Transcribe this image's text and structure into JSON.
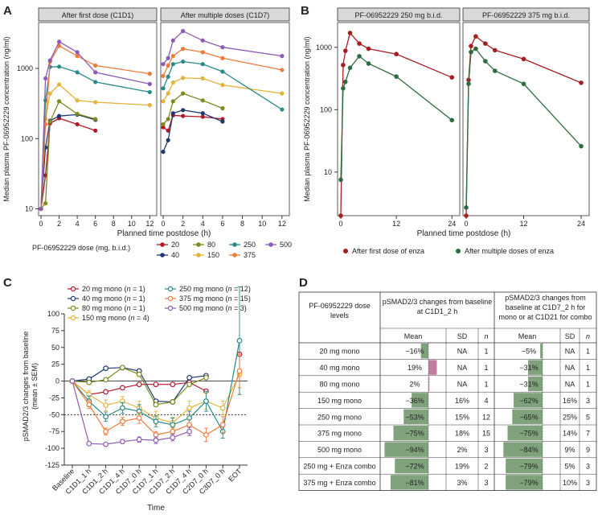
{
  "colors": {
    "20": "#b2182b",
    "40": "#1f3a6e",
    "80": "#7c8a1e",
    "150": "#e3b43c",
    "250": "#2a8a8a",
    "375": "#ef7b3b",
    "500": "#8e5bb4",
    "enza_first": "#a51f22",
    "enza_multi": "#2e6b3e",
    "bar_green": "#7fa27c",
    "bar_pink": "#c37ba4",
    "strip": "#d9d9d9"
  },
  "panel_a": {
    "label": "A",
    "ylabel": "Median plasma PF-06952229 concentration (ng/ml)",
    "xlabel": "Planned time postdose (h)",
    "strips": [
      "After first dose (C1D1)",
      "After multiple doses (C1D7)"
    ],
    "yticks": [
      "10",
      "100",
      "1000"
    ],
    "xticks": [
      "0",
      "2",
      "4",
      "6",
      "8",
      "10",
      "12"
    ],
    "legend_title": "PF-06952229 dose (mg, b.i.d.)",
    "legend": [
      {
        "key": "20",
        "label": "20"
      },
      {
        "key": "80",
        "label": "80"
      },
      {
        "key": "250",
        "label": "250"
      },
      {
        "key": "500",
        "label": "500"
      },
      {
        "key": "40",
        "label": "40"
      },
      {
        "key": "150",
        "label": "150"
      },
      {
        "key": "375",
        "label": "375"
      }
    ]
  },
  "panel_b": {
    "label": "B",
    "ylabel": "Median plasma PF-06952229 concentration (ng/ml)",
    "xlabel": "Planned time postdose (h)",
    "strips": [
      "PF-06952229 250 mg b.i.d.",
      "PF-06952229 375 mg b.i.d."
    ],
    "yticks": [
      "10",
      "100",
      "1000"
    ],
    "xticks": [
      "0",
      "12",
      "24"
    ],
    "legend": [
      {
        "key": "enza_first",
        "label": "After first dose of enza"
      },
      {
        "key": "enza_multi",
        "label": "After multiple doses of enza"
      }
    ]
  },
  "panel_c": {
    "label": "C",
    "ylabel": "pSMAD2/3 changes from baseline (mean ± SEM)",
    "ylabel_line1": "pSMAD2/3 changes from baseline",
    "ylabel_line2": "(mean ± SEM)",
    "xlabel": "Time",
    "yticks": [
      "100",
      "75",
      "50",
      "25",
      "0",
      "-25",
      "-50",
      "-75",
      "-100",
      "-125"
    ],
    "legend": [
      {
        "key": "20",
        "dose": "20 mg mono",
        "n": "1"
      },
      {
        "key": "250",
        "dose": "250 mg mono",
        "n": "12"
      },
      {
        "key": "40",
        "dose": "40 mg mono",
        "n": "1"
      },
      {
        "key": "375",
        "dose": "375 mg mono",
        "n": "15"
      },
      {
        "key": "80",
        "dose": "80 mg mono",
        "n": "1"
      },
      {
        "key": "500",
        "dose": "500 mg mono",
        "n": "3"
      },
      {
        "key": "150",
        "dose": "150 mg mono",
        "n": "4"
      }
    ]
  },
  "panel_d": {
    "label": "D",
    "header_col1": "PF-06952229 dose levels",
    "header_grp1": "pSMAD2/3 changes from baseline at C1D1_2 h",
    "header_grp2": "pSMAD2/3 changes from baseline at C1D7_2 h for mono or at C1D21 for combo",
    "sub_mean": "Mean",
    "sub_sd": "SD",
    "sub_n": "n",
    "rows": [
      {
        "dose": "20 mg mono",
        "m1": "−16%",
        "v1": -16,
        "sd1": "NA",
        "n1": "1",
        "m2": "−5%",
        "v2": -5,
        "sd2": "NA",
        "n2": "1"
      },
      {
        "dose": "40 mg mono",
        "m1": "19%",
        "v1": 19,
        "sd1": "NA",
        "n1": "1",
        "m2": "−31%",
        "v2": -31,
        "sd2": "NA",
        "n2": "1"
      },
      {
        "dose": "80 mg mono",
        "m1": "2%",
        "v1": 2,
        "sd1": "NA",
        "n1": "1",
        "m2": "−31%",
        "v2": -31,
        "sd2": "NA",
        "n2": "1"
      },
      {
        "dose": "150 mg mono",
        "m1": "−36%",
        "v1": -36,
        "sd1": "16%",
        "n1": "4",
        "m2": "−62%",
        "v2": -62,
        "sd2": "16%",
        "n2": "3"
      },
      {
        "dose": "250 mg mono",
        "m1": "−53%",
        "v1": -53,
        "sd1": "15%",
        "n1": "12",
        "m2": "−65%",
        "v2": -65,
        "sd2": "25%",
        "n2": "5"
      },
      {
        "dose": "375 mg mono",
        "m1": "−75%",
        "v1": -75,
        "sd1": "18%",
        "n1": "15",
        "m2": "−75%",
        "v2": -75,
        "sd2": "14%",
        "n2": "7"
      },
      {
        "dose": "500 mg mono",
        "m1": "−94%",
        "v1": -94,
        "sd1": "2%",
        "n1": "3",
        "m2": "−84%",
        "v2": -84,
        "sd2": "9%",
        "n2": "9"
      },
      {
        "dose": "250 mg + Enza combo",
        "m1": "−72%",
        "v1": -72,
        "sd1": "19%",
        "n1": "2",
        "m2": "−79%",
        "v2": -79,
        "sd2": "5%",
        "n2": "3"
      },
      {
        "dose": "375 mg + Enza combo",
        "m1": "−81%",
        "v1": -81,
        "sd1": "3%",
        "n1": "3",
        "m2": "−79%",
        "v2": -79,
        "sd2": "10%",
        "n2": "3"
      }
    ]
  },
  "chart_data": [
    {
      "type": "line",
      "title": "A",
      "ylabel": "Median plasma PF-06952229 concentration (ng/ml)",
      "xlabel": "Planned time postdose (h)",
      "yscale": "log",
      "ylim": [
        8,
        4500
      ],
      "xlim": [
        0,
        12.5
      ],
      "facets": [
        {
          "name": "After first dose (C1D1)",
          "series": [
            {
              "name": "20",
              "x": [
                0,
                0.5,
                1,
                2,
                4,
                6
              ],
              "y": [
                10,
                30,
                165,
                195,
                160,
                130
              ]
            },
            {
              "name": "40",
              "x": [
                0,
                0.5,
                1,
                2,
                4,
                6
              ],
              "y": [
                10,
                75,
                180,
                210,
                220,
                185
              ]
            },
            {
              "name": "80",
              "x": [
                0,
                0.5,
                1,
                2,
                4,
                6
              ],
              "y": [
                10,
                12,
                175,
                340,
                225,
                190
              ]
            },
            {
              "name": "150",
              "x": [
                0,
                0.5,
                1,
                2,
                4,
                6,
                12
              ],
              "y": [
                10,
                190,
                440,
                590,
                350,
                330,
                300
              ]
            },
            {
              "name": "250",
              "x": [
                0,
                0.5,
                1,
                2,
                4,
                6,
                12
              ],
              "y": [
                10,
                350,
                1050,
                1060,
                880,
                640,
                460
              ]
            },
            {
              "name": "375",
              "x": [
                0,
                0.5,
                1,
                2,
                4,
                6,
                12
              ],
              "y": [
                10,
                160,
                1250,
                2100,
                1500,
                1100,
                840
              ]
            },
            {
              "name": "500",
              "x": [
                0,
                0.5,
                1,
                2,
                4,
                6,
                12
              ],
              "y": [
                10,
                720,
                1300,
                2400,
                1700,
                880,
                600
              ]
            }
          ]
        },
        {
          "name": "After multiple doses (C1D7)",
          "series": [
            {
              "name": "20",
              "x": [
                0,
                0.5,
                1,
                2,
                4,
                6
              ],
              "y": [
                145,
                130,
                215,
                210,
                205,
                190
              ]
            },
            {
              "name": "40",
              "x": [
                0,
                0.5,
                1,
                2,
                4,
                6
              ],
              "y": [
                65,
                95,
                230,
                255,
                230,
                175
              ]
            },
            {
              "name": "80",
              "x": [
                0,
                0.5,
                1,
                2,
                4,
                6
              ],
              "y": [
                160,
                190,
                340,
                440,
                350,
                270
              ]
            },
            {
              "name": "150",
              "x": [
                0,
                0.5,
                1,
                2,
                4,
                6,
                12
              ],
              "y": [
                340,
                440,
                630,
                730,
                720,
                580,
                440
              ]
            },
            {
              "name": "250",
              "x": [
                0,
                0.5,
                1,
                2,
                4,
                6,
                12
              ],
              "y": [
                520,
                760,
                1150,
                1250,
                1150,
                900,
                260
              ]
            },
            {
              "name": "375",
              "x": [
                0,
                0.5,
                1,
                2,
                4,
                6,
                12
              ],
              "y": [
                780,
                1100,
                1500,
                1900,
                1700,
                1400,
                950
              ]
            },
            {
              "name": "500",
              "x": [
                0,
                0.5,
                1,
                2,
                4,
                6,
                12
              ],
              "y": [
                1150,
                1400,
                2500,
                3400,
                2500,
                2000,
                1500
              ]
            }
          ]
        }
      ]
    },
    {
      "type": "line",
      "title": "B",
      "ylabel": "Median plasma PF-06952229 concentration (ng/ml)",
      "xlabel": "Planned time postdose (h)",
      "yscale": "log",
      "ylim": [
        2,
        2500
      ],
      "xlim": [
        0,
        25
      ],
      "facets": [
        {
          "name": "PF-06952229 250 mg b.i.d.",
          "series": [
            {
              "name": "After first dose of enza",
              "x": [
                0,
                0.5,
                1,
                2,
                4,
                6,
                12,
                24
              ],
              "y": [
                2,
                520,
                880,
                1700,
                1150,
                950,
                780,
                330
              ]
            },
            {
              "name": "After multiple doses of enza",
              "x": [
                0,
                0.5,
                1,
                2,
                4,
                6,
                12,
                24
              ],
              "y": [
                7.5,
                220,
                280,
                470,
                720,
                550,
                340,
                68
              ]
            }
          ]
        },
        {
          "name": "PF-06952229 375 mg b.i.d.",
          "series": [
            {
              "name": "After first dose of enza",
              "x": [
                0,
                0.5,
                1,
                2,
                4,
                6,
                12,
                24
              ],
              "y": [
                2,
                300,
                1050,
                1500,
                1150,
                900,
                650,
                270
              ]
            },
            {
              "name": "After multiple doses of enza",
              "x": [
                0,
                0.5,
                1,
                2,
                4,
                6,
                12,
                24
              ],
              "y": [
                2.7,
                260,
                840,
                950,
                600,
                420,
                260,
                26
              ]
            }
          ]
        }
      ]
    },
    {
      "type": "line",
      "title": "C",
      "ylabel": "pSMAD2/3 changes from baseline (mean ± SEM)",
      "xlabel": "Time",
      "ylim": [
        -125,
        100
      ],
      "reference_line": -50,
      "categories": [
        "Baseline",
        "C1D1_1 h",
        "C1D1_2 h",
        "C1D1_4 h",
        "C1D7_0 h",
        "C1D7_1 h",
        "C1D7_2 h",
        "C1D7_4 h",
        "C2D7_0 h",
        "C3D7_0 h",
        "EOT"
      ],
      "series": [
        {
          "name": "20",
          "values": [
            0,
            -20,
            -16,
            -10,
            -5,
            -5,
            -5,
            -2,
            -15,
            null,
            40
          ],
          "err": [
            0,
            0,
            0,
            0,
            0,
            0,
            0,
            0,
            0,
            0,
            0
          ]
        },
        {
          "name": "40",
          "values": [
            0,
            3,
            19,
            20,
            15,
            -30,
            -31,
            5,
            8,
            null,
            null
          ],
          "err": [
            0,
            0,
            0,
            0,
            0,
            0,
            0,
            0,
            0,
            0,
            0
          ]
        },
        {
          "name": "80",
          "values": [
            0,
            -2,
            2,
            20,
            10,
            -35,
            -31,
            -5,
            5,
            null,
            null
          ],
          "err": [
            0,
            0,
            0,
            0,
            0,
            0,
            0,
            0,
            0,
            0,
            0
          ]
        },
        {
          "name": "150",
          "values": [
            0,
            -20,
            -36,
            -30,
            -40,
            -55,
            -62,
            -40,
            -30,
            -40,
            10
          ],
          "err": [
            0,
            6,
            8,
            7,
            10,
            10,
            8,
            10,
            12,
            10,
            30
          ]
        },
        {
          "name": "250",
          "values": [
            0,
            -30,
            -53,
            -40,
            -45,
            -60,
            -65,
            -55,
            -30,
            -75,
            60
          ],
          "err": [
            0,
            8,
            7,
            8,
            10,
            8,
            10,
            10,
            15,
            10,
            80
          ]
        },
        {
          "name": "375",
          "values": [
            0,
            -35,
            -75,
            -60,
            -55,
            -80,
            -75,
            -65,
            -80,
            -65,
            15
          ],
          "err": [
            0,
            6,
            5,
            6,
            8,
            5,
            6,
            8,
            10,
            12,
            25
          ]
        },
        {
          "name": "500",
          "values": [
            0,
            -93,
            -94,
            -90,
            -87,
            -88,
            -84,
            -75,
            null,
            null,
            null
          ],
          "err": [
            0,
            2,
            1,
            3,
            4,
            5,
            5,
            6,
            0,
            0,
            0
          ]
        }
      ]
    },
    {
      "type": "table",
      "title": "D",
      "columns": [
        "PF-06952229 dose levels",
        "Mean (C1D1_2 h)",
        "SD",
        "n",
        "Mean (C1D7_2 h / C1D21)",
        "SD",
        "n"
      ]
    }
  ]
}
